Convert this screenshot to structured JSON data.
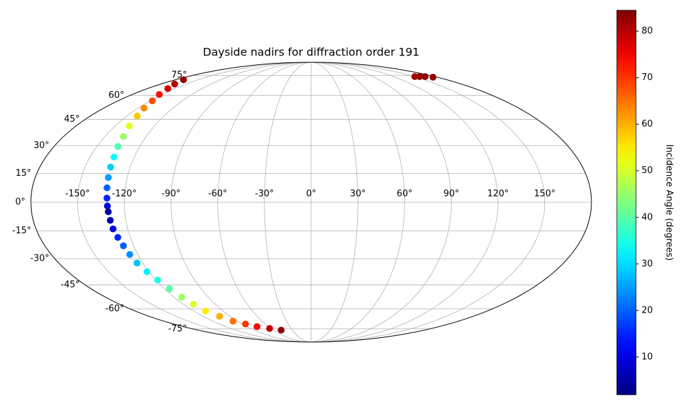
{
  "chart_data": {
    "type": "scatter",
    "projection": "mollweide",
    "title": "Dayside nadirs for diffraction order 191",
    "colorbar_label": "Incidence Angle (degrees)",
    "colormap": "jet",
    "clim": [
      1.9,
      84.5
    ],
    "cticks": [
      10,
      20,
      30,
      40,
      50,
      60,
      70,
      80
    ],
    "grid": true,
    "xticks": [
      {
        "value": -150,
        "label": "-150°"
      },
      {
        "value": -120,
        "label": "-120°"
      },
      {
        "value": -90,
        "label": "-90°"
      },
      {
        "value": -60,
        "label": "-60°"
      },
      {
        "value": -30,
        "label": "-30°"
      },
      {
        "value": 0,
        "label": "0°"
      },
      {
        "value": 30,
        "label": "30°"
      },
      {
        "value": 60,
        "label": "60°"
      },
      {
        "value": 90,
        "label": "90°"
      },
      {
        "value": 120,
        "label": "120°"
      },
      {
        "value": 150,
        "label": "150°"
      }
    ],
    "yticks": [
      {
        "value": -75,
        "label": "-75°"
      },
      {
        "value": -60,
        "label": "-60°"
      },
      {
        "value": -45,
        "label": "-45°"
      },
      {
        "value": -30,
        "label": "-30°"
      },
      {
        "value": -15,
        "label": "-15°"
      },
      {
        "value": 0,
        "label": "0°"
      },
      {
        "value": 15,
        "label": "15°"
      },
      {
        "value": 30,
        "label": "30°"
      },
      {
        "value": 45,
        "label": "45°"
      },
      {
        "value": 60,
        "label": "60°"
      },
      {
        "value": 75,
        "label": "75°"
      }
    ],
    "series": [
      {
        "lon": [
          -169.1,
          -163.4,
          -157.6,
          -152.8,
          -148.0,
          -144.9,
          -141.8,
          -139.2,
          -136.5,
          -135.2,
          -133.8,
          -133.0,
          -132.3,
          -131.8,
          -131.2,
          -130.9,
          -130.6,
          -130.1,
          -129.6,
          -128.3,
          -126.9,
          -125.6,
          -124.2,
          -121.5,
          -118.7,
          -116.0,
          -113.3,
          -110.6,
          -107.9,
          -101.7,
          -95.5,
          -85.9,
          -76.2,
          -62.0,
          -47.8,
          151,
          158,
          166,
          174
        ],
        "lat": [
          71.4,
          68.1,
          64.8,
          60.7,
          56.5,
          51.8,
          47.0,
          41.1,
          35.1,
          29.5,
          23.8,
          18.4,
          12.9,
          7.5,
          2.1,
          -2.0,
          -5.0,
          -9.5,
          -14.0,
          -18.5,
          -23.0,
          -27.7,
          -32.4,
          -37.3,
          -42.1,
          -47.3,
          -52.5,
          -57.0,
          -61.5,
          -65.2,
          -68.8,
          -71.0,
          -73.1,
          -74.6,
          -76.1,
          74,
          74,
          74,
          73.5
        ],
        "values": [
          83,
          80,
          78,
          73,
          68,
          63,
          58,
          51,
          45,
          39,
          33,
          29,
          25,
          20,
          15,
          10,
          4,
          6,
          10,
          15,
          20,
          24,
          28,
          32,
          35,
          40,
          45,
          50,
          55,
          60,
          65,
          70,
          74,
          79,
          83,
          82,
          82,
          83,
          83
        ]
      }
    ]
  }
}
